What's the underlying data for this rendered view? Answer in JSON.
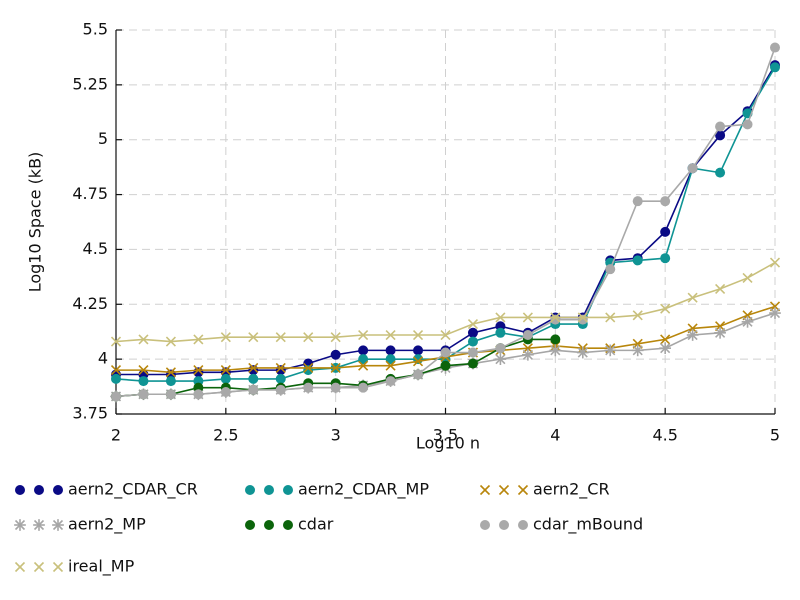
{
  "chart_data": {
    "type": "line",
    "xlabel": "Log10 n",
    "ylabel": "Log10 Space (kB)",
    "x": [
      2,
      2.125,
      2.25,
      2.375,
      2.5,
      2.625,
      2.75,
      2.875,
      3,
      3.125,
      3.25,
      3.375,
      3.5,
      3.625,
      3.75,
      3.875,
      4,
      4.125,
      4.25,
      4.375,
      4.5,
      4.625,
      4.75,
      4.875,
      5
    ],
    "xlim": [
      2,
      5
    ],
    "xticks": [
      2,
      2.5,
      3,
      3.5,
      4,
      4.5,
      5
    ],
    "ylim": [
      3.75,
      5.5
    ],
    "yticks": [
      3.75,
      4,
      4.25,
      4.5,
      4.75,
      5,
      5.25,
      5.5
    ],
    "grid": true,
    "legend": "bottom",
    "series": [
      {
        "name": "aern2_CDAR_CR",
        "color": "#0a0a85",
        "marker": "circle",
        "values": [
          3.93,
          3.93,
          3.93,
          3.94,
          3.94,
          3.95,
          3.95,
          3.98,
          4.02,
          4.04,
          4.04,
          4.04,
          4.04,
          4.12,
          4.15,
          4.12,
          4.19,
          4.19,
          4.45,
          4.46,
          4.58,
          4.87,
          5.02,
          5.13,
          5.34
        ]
      },
      {
        "name": "aern2_CDAR_MP",
        "color": "#0f9494",
        "marker": "circle",
        "values": [
          3.91,
          3.9,
          3.9,
          3.9,
          3.91,
          3.91,
          3.91,
          3.95,
          3.96,
          4.0,
          4.0,
          4.0,
          4.0,
          4.08,
          4.12,
          4.1,
          4.16,
          4.16,
          4.44,
          4.45,
          4.46,
          4.87,
          4.85,
          5.12,
          5.33
        ]
      },
      {
        "name": "aern2_CR",
        "color": "#b8860b",
        "marker": "x",
        "values": [
          3.95,
          3.95,
          3.94,
          3.95,
          3.95,
          3.96,
          3.96,
          3.96,
          3.96,
          3.97,
          3.97,
          3.99,
          4.01,
          4.03,
          4.04,
          4.05,
          4.06,
          4.05,
          4.05,
          4.07,
          4.09,
          4.14,
          4.15,
          4.2,
          4.24
        ]
      },
      {
        "name": "aern2_MP",
        "color": "#a6a6a6",
        "marker": "star",
        "values": [
          3.83,
          3.84,
          3.84,
          3.84,
          3.85,
          3.86,
          3.86,
          3.87,
          3.87,
          3.88,
          3.9,
          3.93,
          3.96,
          3.98,
          4.0,
          4.02,
          4.04,
          4.03,
          4.04,
          4.04,
          4.05,
          4.11,
          4.12,
          4.17,
          4.21
        ]
      },
      {
        "name": "cdar",
        "color": "#0b640b",
        "marker": "circle",
        "values": [
          3.83,
          3.84,
          3.84,
          3.87,
          3.87,
          3.86,
          3.87,
          3.89,
          3.89,
          3.88,
          3.91,
          3.93,
          3.97,
          3.98,
          4.05,
          4.09,
          4.09,
          null,
          null,
          null,
          null,
          null,
          null,
          null,
          null
        ]
      },
      {
        "name": "cdar_mBound",
        "color": "#a9a9a9",
        "marker": "circle",
        "values": [
          3.83,
          3.84,
          3.84,
          3.84,
          3.85,
          3.86,
          3.86,
          3.87,
          3.87,
          3.87,
          3.9,
          3.93,
          4.03,
          4.03,
          4.05,
          4.11,
          4.18,
          4.18,
          4.41,
          4.72,
          4.72,
          4.87,
          5.06,
          5.07,
          5.42
        ]
      },
      {
        "name": "ireal_MP",
        "color": "#c9c07c",
        "marker": "x",
        "values": [
          4.08,
          4.09,
          4.08,
          4.09,
          4.1,
          4.1,
          4.1,
          4.1,
          4.1,
          4.11,
          4.11,
          4.11,
          4.11,
          4.16,
          4.19,
          4.19,
          4.19,
          4.19,
          4.19,
          4.2,
          4.23,
          4.28,
          4.32,
          4.37,
          4.44
        ]
      }
    ]
  }
}
